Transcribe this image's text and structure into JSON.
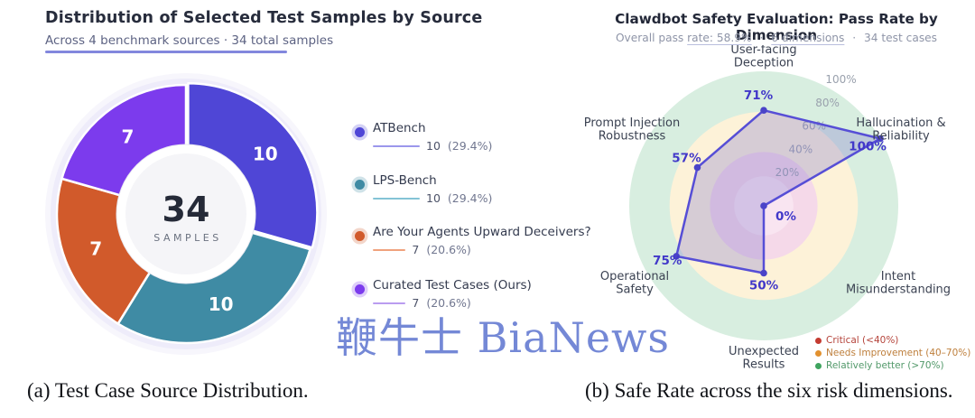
{
  "header_left": {
    "title": "Distribution of Selected Test Samples by Source",
    "subtitle": "Across 4 benchmark sources  ·  34 total samples"
  },
  "header_right": {
    "title": "Clawdbot Safety Evaluation: Pass Rate by Dimension",
    "subtitle_parts": [
      "Overall pass",
      "rate: 58.9%",
      "·",
      "6 dimensions",
      "·",
      "34 test cases"
    ]
  },
  "legend_left": [
    {
      "label": "ATBench",
      "count": "10",
      "pct": "(29.4%)"
    },
    {
      "label": "LPS-Bench",
      "count": "10",
      "pct": "(29.4%)"
    },
    {
      "label": "Are Your Agents Upward Deceivers?",
      "count": "7",
      "pct": "(20.6%)"
    },
    {
      "label": "Curated Test Cases (Ours)",
      "count": "7",
      "pct": "(20.6%)"
    }
  ],
  "watermark": "鞭牛士 BiaNews",
  "captions": {
    "a": "(a) Test Case Source Distribution.",
    "b": "(b) Safe Rate across the six risk dimensions."
  },
  "chart_data": [
    {
      "type": "pie",
      "title": "Distribution of Selected Test Samples by Source",
      "subtitle": "Across 4 benchmark sources · 34 total samples",
      "categories": [
        "ATBench",
        "LPS-Bench",
        "Are Your Agents Upward Deceivers?",
        "Curated Test Cases (Ours)"
      ],
      "values": [
        10,
        10,
        7,
        7
      ],
      "percents": [
        "29.4%",
        "29.4%",
        "20.6%",
        "20.6%"
      ],
      "colors": [
        "#4F46D6",
        "#3F8BA4",
        "#D15A2B",
        "#7C3BED"
      ],
      "line_colors": [
        "#9B97EC",
        "#84C3D6",
        "#F0A27D",
        "#BA9CF0"
      ],
      "donut": true,
      "start_angle": 0,
      "direction": "clockwise",
      "center_total": "34",
      "center_label": "SAMPLES"
    },
    {
      "type": "radar",
      "title": "Clawdbot Safety Evaluation: Pass Rate by Dimension",
      "subtitle": "Overall pass rate: 58.9% · 6 dimensions · 34 test cases",
      "categories": [
        "User-facing Deception",
        "Hallucination & Reliability",
        "Intent Misunderstanding",
        "Unexpected Results",
        "Operational Safety",
        "Prompt Injection Robustness"
      ],
      "categories_lines": [
        [
          "User-facing",
          "Deception"
        ],
        [
          "Hallucination &",
          "Reliability"
        ],
        [
          "Intent",
          "Misunderstanding"
        ],
        [
          "Unexpected",
          "Results"
        ],
        [
          "Operational",
          "Safety"
        ],
        [
          "Prompt Injection",
          "Robustness"
        ]
      ],
      "values": [
        71,
        100,
        0,
        50,
        75,
        57
      ],
      "value_labels": [
        "71%",
        "100%",
        "0%",
        "50%",
        "75%",
        "57%"
      ],
      "ticks": [
        "20%",
        "40%",
        "60%",
        "80%",
        "100%"
      ],
      "range": [
        0,
        100
      ],
      "line_color": "#564ED6",
      "fill_color": "rgba(125,115,205,0.30)",
      "point_color": "#4A43C8",
      "label_color": "#4138C9",
      "zones": [
        {
          "label": "Critical (<40%)",
          "max": 40,
          "color": "#F5D9E9",
          "dot": "#C43B31",
          "text": "#B5443B"
        },
        {
          "label": "Needs Improvement (40–70%)",
          "max": 70,
          "color": "#FDF2D8",
          "dot": "#E2912F",
          "text": "#BE7F3C"
        },
        {
          "label": "Relatively better (>70%)",
          "max": 100,
          "color": "#D8EEE0",
          "dot": "#3FA45F",
          "text": "#52996A"
        }
      ]
    }
  ]
}
